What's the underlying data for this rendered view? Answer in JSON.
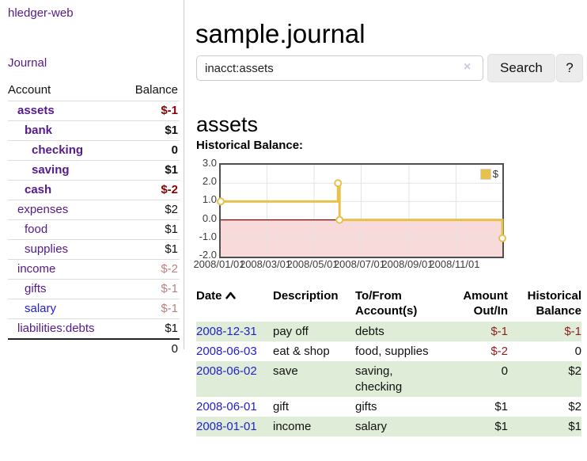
{
  "app": {
    "title": "hledger-web",
    "nav_journal": "Journal"
  },
  "colors": {
    "accent_purple": "#551a8b",
    "link_blue": "#2222cc",
    "negative_strong": "#8b0000",
    "negative": "#8f1f1f",
    "negative_dim": "#bd7f7f",
    "row_green": "#dfecd7"
  },
  "sidebar": {
    "header": {
      "account": "Account",
      "balance": "Balance"
    },
    "accounts": [
      {
        "name": "assets",
        "indent": 0,
        "bold": true,
        "balance": "$-1",
        "balance_style": "neg-strong"
      },
      {
        "name": "bank",
        "indent": 1,
        "bold": true,
        "balance": "$1",
        "balance_style": "strong"
      },
      {
        "name": "checking",
        "indent": 2,
        "bold": true,
        "balance": "0",
        "balance_style": "strong"
      },
      {
        "name": "saving",
        "indent": 2,
        "bold": true,
        "balance": "$1",
        "balance_style": "strong"
      },
      {
        "name": "cash",
        "indent": 1,
        "bold": true,
        "balance": "$-2",
        "balance_style": "neg-strong"
      },
      {
        "name": "expenses",
        "indent": 0,
        "bold": false,
        "balance": "$2",
        "balance_style": ""
      },
      {
        "name": "food",
        "indent": 1,
        "bold": false,
        "balance": "$1",
        "balance_style": ""
      },
      {
        "name": "supplies",
        "indent": 1,
        "bold": false,
        "balance": "$1",
        "balance_style": ""
      },
      {
        "name": "income",
        "indent": 0,
        "bold": false,
        "balance": "$-2",
        "balance_style": "neg-dim"
      },
      {
        "name": "gifts",
        "indent": 1,
        "bold": false,
        "balance": "$-1",
        "balance_style": "neg-dim"
      },
      {
        "name": "salary",
        "indent": 1,
        "bold": false,
        "balance": "$-1",
        "balance_style": "neg-dim",
        "link_color": "blue"
      },
      {
        "name": "liabilities:debts",
        "indent": 0,
        "bold": false,
        "balance": "$1",
        "balance_style": ""
      }
    ],
    "total": "0"
  },
  "header": {
    "title": "sample.journal"
  },
  "search": {
    "value": "inacct:assets",
    "clear_icon": "×",
    "button_label": "Search",
    "help_label": "?"
  },
  "account_page": {
    "title": "assets",
    "chart_label": "Historical Balance:"
  },
  "chart_data": {
    "type": "line",
    "title": "Historical Balance:",
    "step": true,
    "xlim": [
      "2008-01-01",
      "2008-12-31"
    ],
    "ylim": [
      -2,
      3
    ],
    "x_ticks": [
      "2008/01/01",
      "2008/03/01",
      "2008/05/01",
      "2008/07/01",
      "2008/09/01",
      "2008/11/01"
    ],
    "y_ticks": [
      "3.0",
      "2.0",
      "1.0",
      "0.0",
      "-1.0",
      "-2.0"
    ],
    "grid": true,
    "grid_color": "#e3e3e3",
    "negative_region_color": "#f8dada",
    "zero_line_color": "#990000",
    "legend_position": "top-right",
    "series": [
      {
        "name": "$",
        "color": "#e8c14c",
        "points": [
          [
            "2008-01-01",
            1
          ],
          [
            "2008-06-01",
            2
          ],
          [
            "2008-06-03",
            0
          ],
          [
            "2008-12-31",
            -1
          ]
        ]
      }
    ]
  },
  "register": {
    "columns": {
      "date": "Date",
      "description": "Description",
      "tofrom": "To/From Account(s)",
      "amount": "Amount Out/In",
      "balance": "Historical Balance"
    },
    "rows": [
      {
        "date": "2008-12-31",
        "description": "pay off",
        "accounts": "debts",
        "amount": "$-1",
        "amount_negative": true,
        "balance": "$-1",
        "balance_negative": true
      },
      {
        "date": "2008-06-03",
        "description": "eat & shop",
        "accounts": "food, supplies",
        "amount": "$-2",
        "amount_negative": true,
        "balance": "0",
        "balance_negative": false
      },
      {
        "date": "2008-06-02",
        "description": "save",
        "accounts": "saving, checking",
        "amount": "0",
        "amount_negative": false,
        "balance": "$2",
        "balance_negative": false
      },
      {
        "date": "2008-06-01",
        "description": "gift",
        "accounts": "gifts",
        "amount": "$1",
        "amount_negative": false,
        "balance": "$2",
        "balance_negative": false
      },
      {
        "date": "2008-01-01",
        "description": "income",
        "accounts": "salary",
        "amount": "$1",
        "amount_negative": false,
        "balance": "$1",
        "balance_negative": false
      }
    ]
  }
}
